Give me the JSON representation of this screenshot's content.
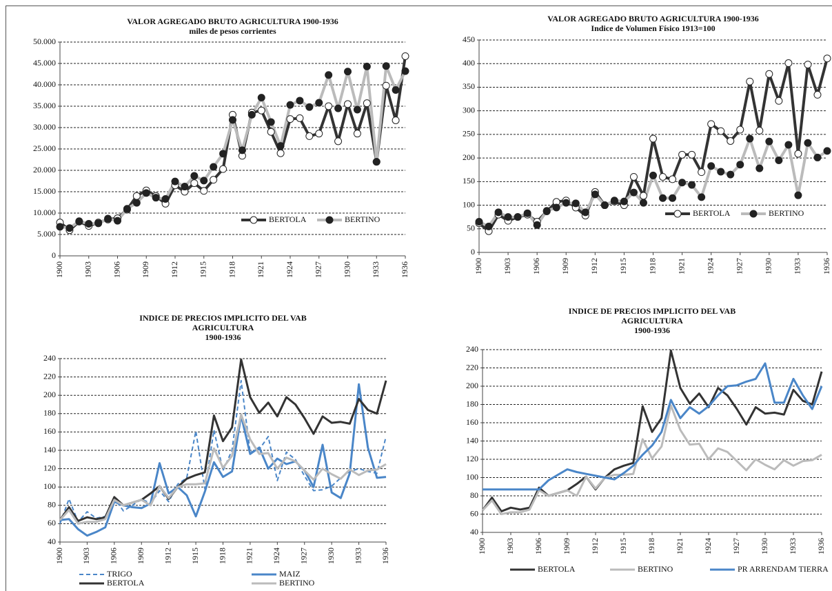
{
  "chart_data": [
    {
      "type": "line",
      "title_lines": [
        "VALOR AGREGADO BRUTO AGRICULTURA  1900-1936",
        "miles de pesos corrientes"
      ],
      "categories": [
        "1900",
        null,
        null,
        "1903",
        null,
        null,
        "1906",
        null,
        null,
        "1909",
        null,
        null,
        "1912",
        null,
        null,
        "1915",
        null,
        null,
        "1918",
        null,
        null,
        "1921",
        null,
        null,
        "1924",
        null,
        null,
        "1927",
        null,
        null,
        "1930",
        null,
        null,
        "1933",
        null,
        null,
        "1936"
      ],
      "ylim": [
        0,
        50000
      ],
      "yticks": [
        0,
        {
          "value": 5000,
          "label": "5.000"
        },
        {
          "value": 10000,
          "label": "10.000"
        },
        {
          "value": 15000,
          "label": "15.000"
        },
        {
          "value": 20000,
          "label": "20.000"
        },
        {
          "value": 25000,
          "label": "25.000"
        },
        {
          "value": 30000,
          "label": "30.000"
        },
        {
          "value": 35000,
          "label": "35.000"
        },
        {
          "value": 40000,
          "label": "40.000"
        },
        {
          "value": 45000,
          "label": "45.000"
        },
        {
          "value": 50000,
          "label": "50.000"
        }
      ],
      "grid": true,
      "legend": "inside-lower-right",
      "series": [
        {
          "name": "BERTOLA",
          "color": "#333333",
          "marker": "open",
          "values": [
            7800,
            6000,
            8000,
            7000,
            7800,
            8500,
            8800,
            10800,
            14000,
            15300,
            14000,
            12200,
            16500,
            15000,
            17000,
            15200,
            17800,
            20300,
            33000,
            23400,
            33500,
            34000,
            29000,
            24000,
            32000,
            32200,
            28000,
            28600,
            35000,
            26800,
            35500,
            28600,
            35700,
            22000,
            39800,
            31700,
            46700
          ]
        },
        {
          "name": "BERTINO",
          "color": "#bbbbbb",
          "marker": "filled",
          "values": [
            6800,
            6500,
            8100,
            7500,
            7600,
            8700,
            8200,
            11000,
            12400,
            14700,
            13600,
            13300,
            17400,
            16200,
            18700,
            17600,
            20800,
            23900,
            31800,
            24700,
            33000,
            37000,
            31300,
            25700,
            35300,
            36300,
            34800,
            35800,
            42300,
            34500,
            43100,
            34200,
            44300,
            22000,
            44400,
            38800,
            43200
          ]
        }
      ]
    },
    {
      "type": "line",
      "title_lines": [
        "VALOR AGREGADO BRUTO AGRICULTURA 1900-1936",
        "Indice de Volumen Físico 1913=100"
      ],
      "categories": [
        "1900",
        null,
        null,
        "1903",
        null,
        null,
        "1906",
        null,
        null,
        "1909",
        null,
        null,
        "1912",
        null,
        null,
        "1915",
        null,
        null,
        "1918",
        null,
        null,
        "1921",
        null,
        null,
        "1924",
        null,
        null,
        "1927",
        null,
        null,
        "1930",
        null,
        null,
        "1933",
        null,
        null,
        "1936"
      ],
      "ylim": [
        0,
        450
      ],
      "yticks": [
        0,
        50,
        100,
        150,
        200,
        250,
        300,
        350,
        400,
        450
      ],
      "grid": true,
      "legend": "inside-lower-right",
      "series": [
        {
          "name": "BERTOLA",
          "color": "#333333",
          "marker": "open",
          "values": [
            62,
            45,
            80,
            67,
            75,
            80,
            65,
            87,
            107,
            110,
            95,
            78,
            128,
            100,
            108,
            100,
            160,
            120,
            241,
            160,
            155,
            207,
            207,
            170,
            272,
            257,
            236,
            260,
            362,
            258,
            378,
            321,
            401,
            209,
            398,
            334,
            411
          ]
        },
        {
          "name": "BERTINO",
          "color": "#bbbbbb",
          "marker": "filled",
          "values": [
            65,
            55,
            85,
            75,
            75,
            83,
            58,
            88,
            95,
            105,
            104,
            85,
            123,
            100,
            110,
            108,
            127,
            105,
            163,
            115,
            115,
            148,
            143,
            117,
            183,
            171,
            165,
            186,
            241,
            178,
            235,
            195,
            228,
            121,
            232,
            201,
            215
          ]
        }
      ]
    },
    {
      "type": "line",
      "title_lines": [
        "INDICE DE PRECIOS IMPLICITO DEL VAB",
        "AGRICULTURA",
        "1900-1936"
      ],
      "categories": [
        "1900",
        null,
        null,
        "1903",
        null,
        null,
        "1906",
        null,
        null,
        "1909",
        null,
        null,
        "1912",
        null,
        null,
        "1915",
        null,
        null,
        "1918",
        null,
        null,
        "1921",
        null,
        null,
        "1924",
        null,
        null,
        "1927",
        null,
        null,
        "1930",
        null,
        null,
        "1933",
        null,
        null,
        "1936"
      ],
      "ylim": [
        40,
        240
      ],
      "yticks": [
        40,
        60,
        80,
        100,
        120,
        140,
        160,
        180,
        200,
        220,
        240
      ],
      "grid": true,
      "legend": "bottom-2col",
      "series": [
        {
          "name": "TRIGO",
          "color": "#4a86c8",
          "dash": true,
          "values": [
            60,
            87,
            62,
            73,
            66,
            68,
            88,
            74,
            80,
            87,
            82,
            96,
            84,
            103,
            110,
            161,
            98,
            162,
            118,
            140,
            216,
            138,
            141,
            155,
            107,
            138,
            130,
            112,
            96,
            97,
            101,
            110,
            117,
            120,
            117,
            115,
            155
          ]
        },
        {
          "name": "MAIZ",
          "color": "#4a86c8",
          "values": [
            64,
            65,
            54,
            47,
            51,
            56,
            84,
            80,
            78,
            77,
            82,
            126,
            93,
            100,
            91,
            68,
            95,
            127,
            111,
            117,
            178,
            136,
            143,
            120,
            131,
            125,
            128,
            118,
            100,
            146,
            94,
            88,
            115,
            212,
            143,
            110,
            111
          ]
        },
        {
          "name": "BERTOLA",
          "color": "#333333",
          "values": [
            64,
            78,
            63,
            67,
            65,
            67,
            89,
            80,
            83,
            86,
            93,
            101,
            87,
            100,
            109,
            113,
            116,
            178,
            150,
            165,
            239,
            198,
            181,
            192,
            177,
            198,
            190,
            175,
            158,
            177,
            170,
            171,
            169,
            196,
            184,
            180,
            216
          ]
        },
        {
          "name": "BERTINO",
          "color": "#bbbbbb",
          "values": [
            64,
            75,
            60,
            62,
            62,
            65,
            86,
            80,
            83,
            86,
            80,
            101,
            88,
            100,
            103,
            103,
            104,
            142,
            121,
            134,
            179,
            152,
            136,
            137,
            120,
            132,
            128,
            118,
            108,
            120,
            114,
            109,
            119,
            113,
            118,
            119,
            125
          ]
        }
      ]
    },
    {
      "type": "line",
      "title_lines": [
        "INDICE DE PRECIOS IMPLICITO DEL VAB",
        "AGRICULTURA",
        "1900-1936"
      ],
      "categories": [
        "1900",
        null,
        null,
        "1903",
        null,
        null,
        "1906",
        null,
        null,
        "1909",
        null,
        null,
        "1912",
        null,
        null,
        "1915",
        null,
        null,
        "1918",
        null,
        null,
        "1921",
        null,
        null,
        "1924",
        null,
        null,
        "1927",
        null,
        null,
        "1930",
        null,
        null,
        "1933",
        null,
        null,
        "1936"
      ],
      "ylim": [
        40,
        240
      ],
      "yticks": [
        40,
        60,
        80,
        100,
        120,
        140,
        160,
        180,
        200,
        220,
        240
      ],
      "grid": true,
      "legend": "bottom-row",
      "series": [
        {
          "name": "BERTOLA",
          "color": "#333333",
          "values": [
            64,
            78,
            63,
            67,
            65,
            67,
            89,
            80,
            83,
            86,
            93,
            101,
            87,
            100,
            109,
            113,
            116,
            178,
            150,
            165,
            239,
            198,
            181,
            192,
            177,
            198,
            190,
            175,
            158,
            177,
            170,
            171,
            169,
            196,
            184,
            180,
            216
          ]
        },
        {
          "name": "BERTINO",
          "color": "#bbbbbb",
          "values": [
            64,
            75,
            60,
            62,
            62,
            65,
            86,
            80,
            83,
            86,
            80,
            101,
            88,
            100,
            103,
            103,
            104,
            142,
            121,
            134,
            179,
            152,
            136,
            137,
            120,
            132,
            128,
            118,
            108,
            120,
            114,
            109,
            119,
            113,
            118,
            119,
            125
          ]
        },
        {
          "name": "PR ARRENDAM TIERRA",
          "color": "#4a86c8",
          "values": [
            87,
            87,
            87,
            87,
            87,
            87,
            87,
            97,
            103,
            109,
            106,
            104,
            102,
            100,
            98,
            105,
            113,
            125,
            135,
            150,
            185,
            165,
            177,
            170,
            178,
            190,
            200,
            201,
            205,
            208,
            225,
            182,
            182,
            208,
            190,
            175,
            200
          ]
        }
      ]
    }
  ]
}
